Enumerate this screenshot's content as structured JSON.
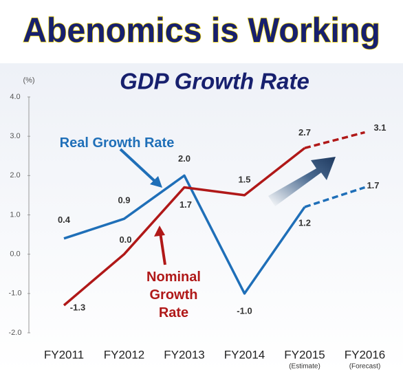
{
  "chart_data": {
    "type": "line",
    "title": "Abenomics is Working",
    "subtitle": "GDP Growth Rate",
    "y_unit": "(%)",
    "categories": [
      "FY2011",
      "FY2012",
      "FY2013",
      "FY2014",
      "FY2015",
      "FY2016"
    ],
    "category_notes": [
      null,
      null,
      null,
      null,
      "(Estimate)",
      "(Forecast)"
    ],
    "series": [
      {
        "name": "Real Growth Rate",
        "color": "#1f6fb8",
        "values": [
          0.4,
          0.9,
          2.0,
          -1.0,
          1.2,
          1.7
        ],
        "value_labels": [
          "0.4",
          "0.9",
          "2.0",
          "-1.0",
          "1.2",
          "1.7"
        ]
      },
      {
        "name": "Nominal Growth Rate",
        "color": "#b01818",
        "values": [
          -1.3,
          0.0,
          1.7,
          1.5,
          2.7,
          3.1
        ],
        "value_labels": [
          "-1.3",
          "0.0",
          "1.7",
          "1.5",
          "2.7",
          "3.1"
        ]
      }
    ],
    "ylim": [
      -2,
      4
    ],
    "yticks": [
      {
        "value": 4,
        "label": "4.0"
      },
      {
        "value": 3,
        "label": "3.0"
      },
      {
        "value": 2,
        "label": "2.0"
      },
      {
        "value": 1,
        "label": "1.0"
      },
      {
        "value": 0,
        "label": "0.0"
      },
      {
        "value": -1,
        "label": "-1.0"
      },
      {
        "value": -2,
        "label": "-2.0"
      }
    ],
    "grid": false
  }
}
